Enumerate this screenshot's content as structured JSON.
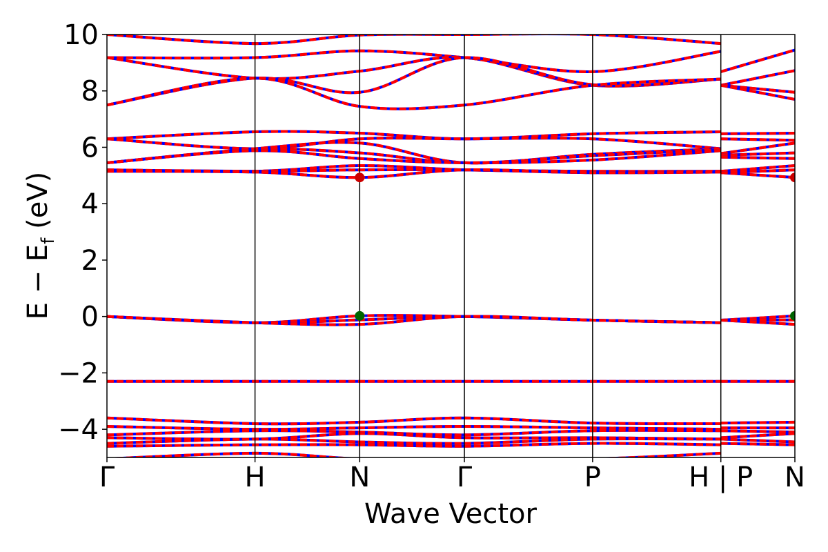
{
  "chart_data": {
    "type": "line",
    "xlabel": "Wave Vector",
    "ylabel_main": "E − E",
    "ylabel_sub": "f",
    "ylabel_unit": " (eV)",
    "ylim": [
      -5,
      10
    ],
    "yticks": [
      10,
      8,
      6,
      4,
      2,
      0,
      -2,
      -4
    ],
    "ytick_labels": [
      "10",
      "8",
      "6",
      "4",
      "2",
      "0",
      "−2",
      "−4"
    ],
    "kpath": [
      {
        "label": "Γ",
        "x": 0.0
      },
      {
        "label": "H",
        "x": 1.0
      },
      {
        "label": "N",
        "x": 1.707
      },
      {
        "label": "Γ",
        "x": 2.414
      },
      {
        "label": "P",
        "x": 3.28
      },
      {
        "label": "H | P",
        "x": 4.146
      },
      {
        "label": "N",
        "x": 4.646
      }
    ],
    "xlim": [
      0,
      4.646
    ],
    "series_colors": {
      "spin_up": "#0000ff",
      "spin_down": "#ff0000"
    },
    "markers": [
      {
        "name": "CBM",
        "x": 1.707,
        "y": 4.93,
        "color": "#cc0000"
      },
      {
        "name": "CBM",
        "x": 4.646,
        "y": 4.93,
        "color": "#cc0000"
      },
      {
        "name": "VBM",
        "x": 1.707,
        "y": 0.02,
        "color": "#006400"
      },
      {
        "name": "VBM",
        "x": 4.646,
        "y": 0.02,
        "color": "#006400"
      }
    ],
    "bands": [
      {
        "x": [
          0,
          1,
          1.707,
          2.414,
          3.28,
          4.146
        ],
        "y": [
          10.0,
          9.68,
          9.98,
          10.0,
          10.0,
          9.68
        ]
      },
      {
        "x": [
          4.146,
          4.646
        ],
        "y": [
          8.68,
          9.45
        ]
      },
      {
        "x": [
          0,
          1,
          1.707,
          2.414,
          3.28,
          4.146
        ],
        "y": [
          9.18,
          9.18,
          9.42,
          9.18,
          8.68,
          9.4
        ]
      },
      {
        "x": [
          0,
          1,
          1.707,
          2.414,
          3.28,
          4.146
        ],
        "y": [
          9.18,
          8.45,
          8.7,
          9.18,
          8.2,
          8.42
        ]
      },
      {
        "x": [
          4.146,
          4.646
        ],
        "y": [
          8.2,
          8.72
        ]
      },
      {
        "x": [
          0,
          1,
          1.707,
          2.414,
          3.28,
          4.146
        ],
        "y": [
          7.5,
          8.45,
          7.95,
          9.18,
          8.22,
          8.42
        ]
      },
      {
        "x": [
          4.146,
          4.646
        ],
        "y": [
          8.2,
          7.95
        ]
      },
      {
        "x": [
          0,
          1,
          1.707,
          2.414,
          3.28,
          4.146
        ],
        "y": [
          7.5,
          8.45,
          7.45,
          7.5,
          8.2,
          8.42
        ]
      },
      {
        "x": [
          4.146,
          4.646
        ],
        "y": [
          8.2,
          7.7
        ]
      },
      {
        "x": [
          0,
          1,
          1.707,
          2.414,
          3.28,
          4.146
        ],
        "y": [
          6.3,
          6.55,
          6.5,
          6.3,
          6.48,
          6.55
        ]
      },
      {
        "x": [
          4.146,
          4.646
        ],
        "y": [
          6.48,
          6.5
        ]
      },
      {
        "x": [
          0,
          1,
          1.707,
          2.414,
          3.28,
          4.146
        ],
        "y": [
          6.3,
          5.95,
          6.3,
          6.3,
          6.3,
          5.95
        ]
      },
      {
        "x": [
          4.146,
          4.646
        ],
        "y": [
          6.3,
          6.25
        ]
      },
      {
        "x": [
          0,
          1,
          1.707,
          2.414,
          3.28,
          4.146
        ],
        "y": [
          5.45,
          5.95,
          6.15,
          5.45,
          5.75,
          5.95
        ]
      },
      {
        "x": [
          4.146,
          4.646
        ],
        "y": [
          5.78,
          6.15
        ]
      },
      {
        "x": [
          0,
          1,
          1.707,
          2.414,
          3.28,
          4.146
        ],
        "y": [
          5.45,
          5.92,
          5.8,
          5.45,
          5.7,
          5.92
        ]
      },
      {
        "x": [
          4.146,
          4.646
        ],
        "y": [
          5.72,
          5.8
        ]
      },
      {
        "x": [
          0,
          1,
          1.707,
          2.414,
          3.28,
          4.146
        ],
        "y": [
          5.45,
          5.88,
          5.6,
          5.45,
          5.55,
          5.88
        ]
      },
      {
        "x": [
          4.146,
          4.646
        ],
        "y": [
          5.65,
          5.6
        ]
      },
      {
        "x": [
          0,
          1,
          1.707,
          2.414,
          3.28,
          4.146
        ],
        "y": [
          5.2,
          5.15,
          5.35,
          5.2,
          5.15,
          5.15
        ]
      },
      {
        "x": [
          4.146,
          4.646
        ],
        "y": [
          5.15,
          5.35
        ]
      },
      {
        "x": [
          0,
          1,
          1.707,
          2.414,
          3.28,
          4.146
        ],
        "y": [
          5.2,
          5.15,
          5.2,
          5.2,
          5.1,
          5.15
        ]
      },
      {
        "x": [
          4.146,
          4.646
        ],
        "y": [
          5.1,
          5.2
        ]
      },
      {
        "x": [
          0,
          1,
          1.707,
          2.414,
          3.28,
          4.146
        ],
        "y": [
          5.15,
          5.12,
          4.93,
          5.2,
          5.1,
          5.12
        ]
      },
      {
        "x": [
          4.146,
          4.646
        ],
        "y": [
          5.1,
          4.93
        ]
      },
      {
        "x": [
          0,
          1,
          1.707,
          2.414,
          3.28,
          4.146
        ],
        "y": [
          0.0,
          -0.22,
          0.02,
          0.0,
          -0.13,
          -0.22
        ]
      },
      {
        "x": [
          4.146,
          4.646
        ],
        "y": [
          -0.13,
          0.02
        ]
      },
      {
        "x": [
          0,
          1,
          1.707,
          2.414,
          3.28,
          4.146
        ],
        "y": [
          0.0,
          -0.22,
          -0.12,
          0.0,
          -0.13,
          -0.22
        ]
      },
      {
        "x": [
          4.146,
          4.646
        ],
        "y": [
          -0.13,
          -0.12
        ]
      },
      {
        "x": [
          0,
          1,
          1.707,
          2.414,
          3.28,
          4.146
        ],
        "y": [
          0.0,
          -0.22,
          -0.28,
          0.0,
          -0.13,
          -0.22
        ]
      },
      {
        "x": [
          4.146,
          4.646
        ],
        "y": [
          -0.13,
          -0.28
        ]
      },
      {
        "x": [
          0,
          1,
          1.707,
          2.414,
          3.28,
          4.146
        ],
        "y": [
          -2.3,
          -2.3,
          -2.3,
          -2.3,
          -2.3,
          -2.3
        ]
      },
      {
        "x": [
          4.146,
          4.646
        ],
        "y": [
          -2.3,
          -2.3
        ]
      },
      {
        "x": [
          0,
          1,
          1.707,
          2.414,
          3.28,
          4.146
        ],
        "y": [
          -3.6,
          -3.8,
          -3.75,
          -3.6,
          -3.78,
          -3.8
        ]
      },
      {
        "x": [
          4.146,
          4.646
        ],
        "y": [
          -3.78,
          -3.75
        ]
      },
      {
        "x": [
          0,
          1,
          1.707,
          2.414,
          3.28,
          4.146
        ],
        "y": [
          -3.9,
          -4.0,
          -3.95,
          -3.9,
          -3.95,
          -4.0
        ]
      },
      {
        "x": [
          4.146,
          4.646
        ],
        "y": [
          -3.95,
          -3.95
        ]
      },
      {
        "x": [
          0,
          1,
          1.707,
          2.414,
          3.28,
          4.146
        ],
        "y": [
          -4.2,
          -4.05,
          -4.1,
          -4.2,
          -4.05,
          -4.05
        ]
      },
      {
        "x": [
          4.146,
          4.646
        ],
        "y": [
          -4.05,
          -4.1
        ]
      },
      {
        "x": [
          0,
          1,
          1.707,
          2.414,
          3.28,
          4.146
        ],
        "y": [
          -4.3,
          -4.35,
          -4.15,
          -4.3,
          -4.3,
          -4.35
        ]
      },
      {
        "x": [
          4.146,
          4.646
        ],
        "y": [
          -4.3,
          -4.15
        ]
      },
      {
        "x": [
          0,
          1,
          1.707,
          2.414,
          3.28,
          4.146
        ],
        "y": [
          -4.5,
          -4.35,
          -4.45,
          -4.5,
          -4.35,
          -4.35
        ]
      },
      {
        "x": [
          4.146,
          4.646
        ],
        "y": [
          -4.35,
          -4.45
        ]
      },
      {
        "x": [
          0,
          1,
          1.707,
          2.414,
          3.28,
          4.146
        ],
        "y": [
          -4.6,
          -4.55,
          -4.55,
          -4.6,
          -4.5,
          -4.55
        ]
      },
      {
        "x": [
          4.146,
          4.646
        ],
        "y": [
          -4.5,
          -4.55
        ]
      },
      {
        "x": [
          0,
          1,
          1.707,
          2.414,
          3.28,
          4.146
        ],
        "y": [
          -5.05,
          -4.85,
          -5.05,
          -5.05,
          -5.05,
          -4.85
        ]
      }
    ]
  }
}
